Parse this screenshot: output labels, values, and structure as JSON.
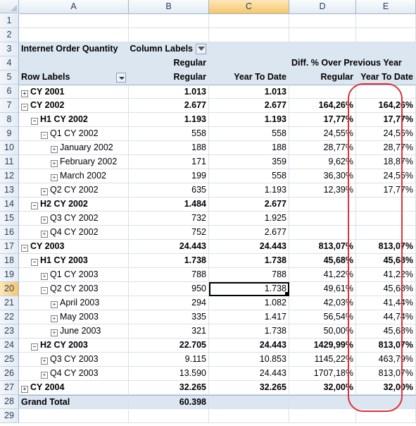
{
  "columns": [
    "A",
    "B",
    "C",
    "D",
    "E"
  ],
  "selected_column": "C",
  "selected_row": "20",
  "rows": [
    {
      "n": "1",
      "cells": [
        "",
        "",
        "",
        "",
        ""
      ]
    },
    {
      "n": "2",
      "cells": [
        "",
        "",
        "",
        "",
        ""
      ]
    },
    {
      "n": "3",
      "cells": [
        "Internet Order Quantity",
        "Column Labels",
        "",
        "",
        ""
      ]
    },
    {
      "n": "4",
      "cells": [
        "",
        "Regular",
        "",
        "Diff. % Over Previous Year",
        ""
      ]
    },
    {
      "n": "5",
      "cells": [
        "Row Labels",
        "Regular",
        "Year To Date",
        "Regular",
        "Year To Date"
      ]
    },
    {
      "n": "6",
      "cells": [
        "CY 2001",
        "1.013",
        "1.013",
        "",
        ""
      ]
    },
    {
      "n": "7",
      "cells": [
        "CY 2002",
        "2.677",
        "2.677",
        "164,26%",
        "164,26%"
      ]
    },
    {
      "n": "8",
      "cells": [
        "H1 CY 2002",
        "1.193",
        "1.193",
        "17,77%",
        "17,77%"
      ]
    },
    {
      "n": "9",
      "cells": [
        "Q1 CY 2002",
        "558",
        "558",
        "24,55%",
        "24,55%"
      ]
    },
    {
      "n": "10",
      "cells": [
        "January 2002",
        "188",
        "188",
        "28,77%",
        "28,77%"
      ]
    },
    {
      "n": "11",
      "cells": [
        "February 2002",
        "171",
        "359",
        "9,62%",
        "18,87%"
      ]
    },
    {
      "n": "12",
      "cells": [
        "March 2002",
        "199",
        "558",
        "36,30%",
        "24,55%"
      ]
    },
    {
      "n": "13",
      "cells": [
        "Q2 CY 2002",
        "635",
        "1.193",
        "12,39%",
        "17,77%"
      ]
    },
    {
      "n": "14",
      "cells": [
        "H2 CY 2002",
        "1.484",
        "2.677",
        "",
        ""
      ]
    },
    {
      "n": "15",
      "cells": [
        "Q3 CY 2002",
        "732",
        "1.925",
        "",
        ""
      ]
    },
    {
      "n": "16",
      "cells": [
        "Q4 CY 2002",
        "752",
        "2.677",
        "",
        ""
      ]
    },
    {
      "n": "17",
      "cells": [
        "CY 2003",
        "24.443",
        "24.443",
        "813,07%",
        "813,07%"
      ]
    },
    {
      "n": "18",
      "cells": [
        "H1 CY 2003",
        "1.738",
        "1.738",
        "45,68%",
        "45,68%"
      ]
    },
    {
      "n": "19",
      "cells": [
        "Q1 CY 2003",
        "788",
        "788",
        "41,22%",
        "41,22%"
      ]
    },
    {
      "n": "20",
      "cells": [
        "Q2 CY 2003",
        "950",
        "1.738",
        "49,61%",
        "45,68%"
      ]
    },
    {
      "n": "21",
      "cells": [
        "April 2003",
        "294",
        "1.082",
        "42,03%",
        "41,44%"
      ]
    },
    {
      "n": "22",
      "cells": [
        "May 2003",
        "335",
        "1.417",
        "56,54%",
        "44,74%"
      ]
    },
    {
      "n": "23",
      "cells": [
        "June 2003",
        "321",
        "1.738",
        "50,00%",
        "45,68%"
      ]
    },
    {
      "n": "24",
      "cells": [
        "H2 CY 2003",
        "22.705",
        "24.443",
        "1429,99%",
        "813,07%"
      ]
    },
    {
      "n": "25",
      "cells": [
        "Q3 CY 2003",
        "9.115",
        "10.853",
        "1145,22%",
        "463,79%"
      ]
    },
    {
      "n": "26",
      "cells": [
        "Q4 CY 2003",
        "13.590",
        "24.443",
        "1707,18%",
        "813,07%"
      ]
    },
    {
      "n": "27",
      "cells": [
        "CY 2004",
        "32.265",
        "32.265",
        "32,00%",
        "32,00%"
      ]
    },
    {
      "n": "28",
      "cells": [
        "Grand Total",
        "60.398",
        "",
        "",
        ""
      ]
    },
    {
      "n": "29",
      "cells": [
        "",
        "",
        "",
        "",
        ""
      ]
    }
  ]
}
